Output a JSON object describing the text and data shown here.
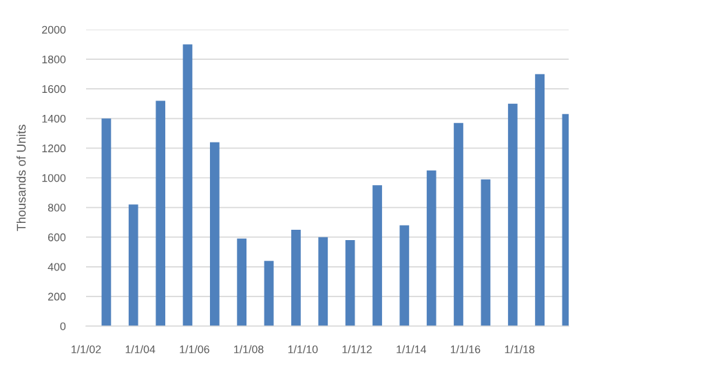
{
  "chart_data": {
    "type": "bar",
    "ylabel": "Thousands of Units",
    "x": [
      "2002-10-01",
      "2003-10-01",
      "2004-10-01",
      "2005-10-01",
      "2006-10-01",
      "2007-10-01",
      "2008-10-01",
      "2009-10-01",
      "2010-10-01",
      "2011-10-01",
      "2012-10-01",
      "2013-10-01",
      "2014-10-01",
      "2015-10-01",
      "2016-10-01",
      "2017-10-01",
      "2018-10-01",
      "2019-10-01"
    ],
    "values": [
      1400,
      820,
      1520,
      1900,
      1240,
      590,
      440,
      650,
      600,
      580,
      950,
      680,
      1050,
      1370,
      990,
      1500,
      1700,
      1430
    ],
    "color": "#4f81bd",
    "xlim": [
      "2002-01-01",
      "2019-10-25"
    ],
    "xticks": [
      {
        "value": "2002-01-01",
        "label": "1/1/02"
      },
      {
        "value": "2004-01-01",
        "label": "1/1/04"
      },
      {
        "value": "2006-01-01",
        "label": "1/1/06"
      },
      {
        "value": "2008-01-01",
        "label": "1/1/08"
      },
      {
        "value": "2010-01-01",
        "label": "1/1/10"
      },
      {
        "value": "2012-01-01",
        "label": "1/1/12"
      },
      {
        "value": "2014-01-01",
        "label": "1/1/14"
      },
      {
        "value": "2016-01-01",
        "label": "1/1/16"
      },
      {
        "value": "2018-01-01",
        "label": "1/1/18"
      }
    ],
    "ylim": [
      0,
      2000
    ],
    "yticks": [
      0,
      200,
      400,
      600,
      800,
      1000,
      1200,
      1400,
      1600,
      1800,
      2000
    ],
    "grid": "y"
  }
}
